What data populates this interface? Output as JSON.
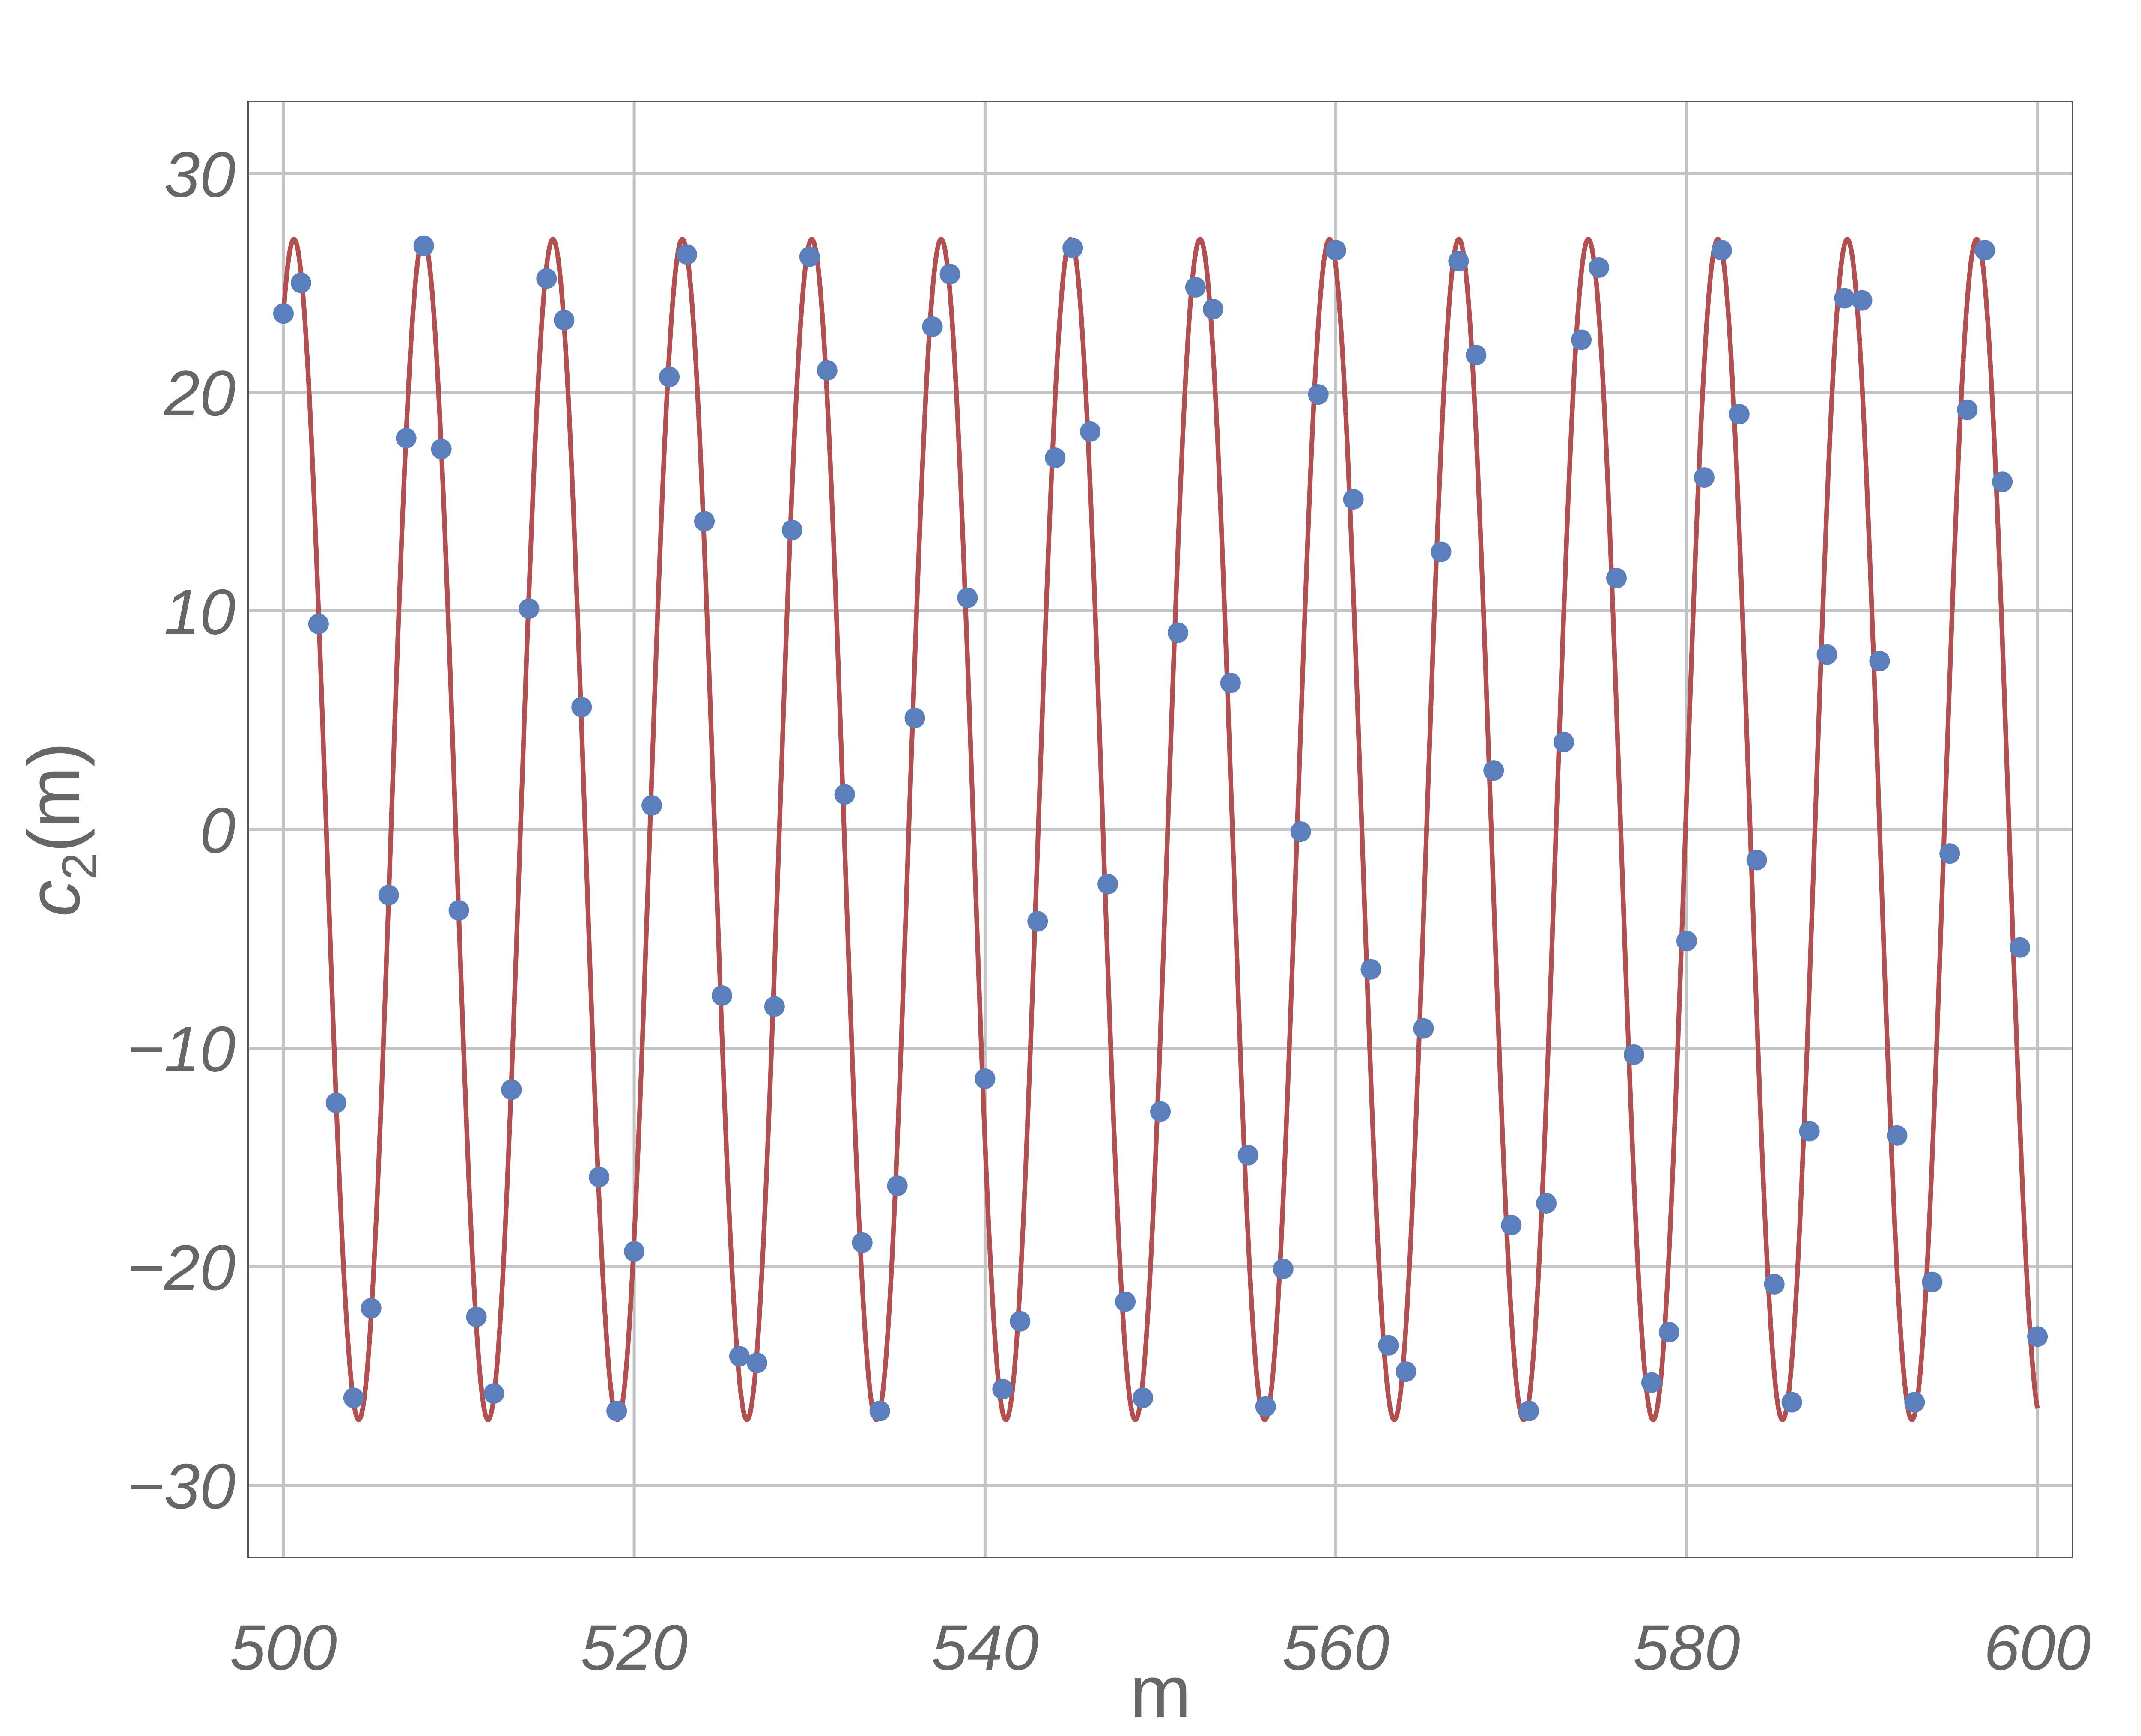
{
  "chart_data": {
    "type": "scatter",
    "title": "",
    "xlabel": "m",
    "ylabel": {
      "base": "c",
      "subscript": "2",
      "rest": "(m)"
    },
    "xlim": [
      498,
      602
    ],
    "ylim": [
      -33.3,
      33.3
    ],
    "xticks": [
      500,
      520,
      540,
      560,
      580,
      600
    ],
    "yticks": [
      -30,
      -20,
      -10,
      0,
      10,
      20,
      30
    ],
    "grid": true,
    "legend": "none",
    "colors": {
      "points": "#5b7fbc",
      "curve": "#b3504f",
      "grid": "#c4c4c4",
      "frame": "#555555",
      "text": "#666666"
    },
    "series": [
      {
        "kind": "points",
        "x": [
          500,
          501,
          502,
          503,
          504,
          505,
          506,
          507,
          508,
          509,
          510,
          511,
          512,
          513,
          514,
          515,
          516,
          517,
          518,
          519,
          520,
          521,
          522,
          523,
          524,
          525,
          526,
          527,
          528,
          529,
          530,
          531,
          532,
          533,
          534,
          535,
          536,
          537,
          538,
          539,
          540,
          541,
          542,
          543,
          544,
          545,
          546,
          547,
          548,
          549,
          550,
          551,
          552,
          553,
          554,
          555,
          556,
          557,
          558,
          559,
          560,
          561,
          562,
          563,
          564,
          565,
          566,
          567,
          568,
          569,
          570,
          571,
          572,
          573,
          574,
          575,
          576,
          577,
          578,
          579,
          580,
          581,
          582,
          583,
          584,
          585,
          586,
          587,
          588,
          589,
          590,
          591,
          592,
          593,
          594,
          595,
          596,
          597,
          598,
          599,
          600
        ],
        "y": [
          23.6,
          25.0,
          9.4,
          -12.5,
          -26.0,
          -21.9,
          -3.0,
          17.9,
          26.7,
          17.4,
          -3.7,
          -22.3,
          -25.8,
          -11.9,
          10.1,
          25.2,
          23.3,
          5.6,
          -15.9,
          -26.6,
          -19.3,
          1.1,
          20.7,
          26.3,
          14.1,
          -7.6,
          -24.1,
          -24.4,
          -8.1,
          13.7,
          26.2,
          21.0,
          1.6,
          -18.9,
          -26.6,
          -16.3,
          5.1,
          23.0,
          25.4,
          10.6,
          -11.4,
          -25.6,
          -22.5,
          -4.2,
          17.0,
          26.6,
          18.2,
          -2.5,
          -21.6,
          -26.0,
          -12.9,
          9.0,
          24.8,
          23.8,
          6.7,
          -14.9,
          -26.4,
          -20.1,
          -0.1,
          19.9,
          26.5,
          15.1,
          -6.4,
          -23.6,
          -24.8,
          -9.1,
          12.7,
          26.0,
          21.7,
          2.7,
          -18.1,
          -26.6,
          -17.1,
          4.0,
          22.4,
          25.7,
          11.5,
          -10.3,
          -25.3,
          -23.0,
          -5.1,
          16.1,
          26.5,
          19.0,
          -1.4,
          -20.8,
          -26.2,
          -13.8,
          8.0,
          24.3,
          24.2,
          7.7,
          -14.0,
          -26.2,
          -20.7,
          -1.1,
          19.2,
          26.5,
          15.9,
          -5.4,
          -23.2
        ]
      },
      {
        "kind": "fit-curve",
        "amplitude": 27,
        "period": 7.38,
        "phase_x": 500.6,
        "x_range": [
          500,
          600
        ]
      }
    ]
  }
}
